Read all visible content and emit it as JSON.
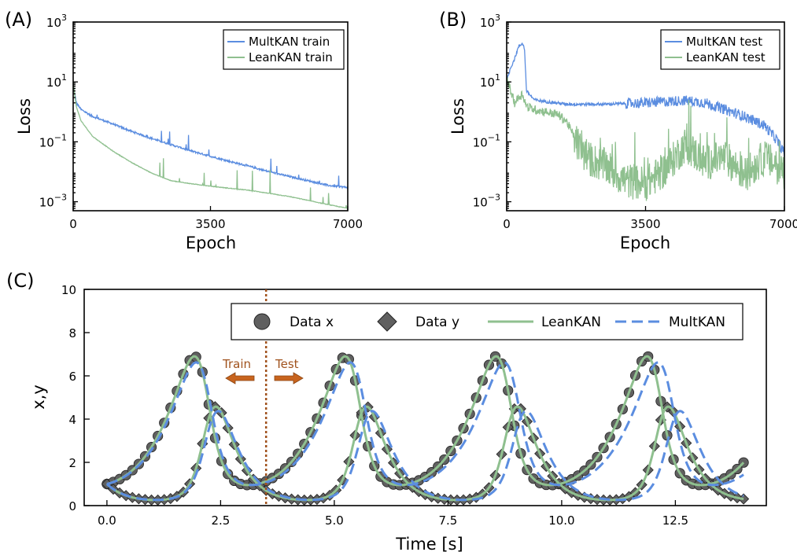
{
  "panels": {
    "a": {
      "label": "(A)"
    },
    "b": {
      "label": "(B)"
    },
    "c": {
      "label": "(C)"
    }
  },
  "colors": {
    "multkan": "#5b8de0",
    "leankan": "#8fc08f",
    "data_marker": "#606060",
    "split_line": "#a0521d",
    "arrow": "#c8641e"
  },
  "chart_data": [
    {
      "id": "A",
      "type": "line",
      "xlabel": "Epoch",
      "ylabel": "Loss",
      "xlim": [
        0,
        7000
      ],
      "ylim": [
        0.0005,
        1000
      ],
      "yscale": "log",
      "xticks": [
        0,
        3500,
        7000
      ],
      "xtick_labels": [
        "0",
        "3500",
        "7000"
      ],
      "yticks": [
        1000,
        10,
        0.1,
        0.001
      ],
      "ytick_labels": [
        {
          "base": "10",
          "exp": "3"
        },
        {
          "base": "10",
          "exp": "1"
        },
        {
          "base": "10",
          "exp": "−1"
        },
        {
          "base": "10",
          "exp": "−3"
        }
      ],
      "legend": "top-right",
      "series": [
        {
          "name": "MultKAN train",
          "color": "#5b8de0",
          "x": [
            0,
            80,
            200,
            500,
            1000,
            1500,
            2000,
            2500,
            3000,
            3500,
            4000,
            4500,
            5000,
            5500,
            6000,
            6500,
            7000
          ],
          "y": [
            8,
            2.0,
            1.2,
            0.7,
            0.4,
            0.22,
            0.13,
            0.08,
            0.05,
            0.033,
            0.022,
            0.015,
            0.01,
            0.007,
            0.005,
            0.0035,
            0.003
          ]
        },
        {
          "name": "LeanKAN train",
          "color": "#8fc08f",
          "x": [
            0,
            80,
            200,
            500,
            1000,
            1500,
            2000,
            2500,
            3000,
            3500,
            4000,
            4500,
            5000,
            5500,
            6000,
            6500,
            7000
          ],
          "y": [
            9,
            1.5,
            0.5,
            0.15,
            0.05,
            0.02,
            0.009,
            0.005,
            0.004,
            0.0033,
            0.0028,
            0.0024,
            0.0019,
            0.0015,
            0.0011,
            0.0008,
            0.0006
          ]
        }
      ]
    },
    {
      "id": "B",
      "type": "line",
      "xlabel": "Epoch",
      "ylabel": "Loss",
      "xlim": [
        0,
        7000
      ],
      "ylim": [
        0.0005,
        1000
      ],
      "yscale": "log",
      "xticks": [
        0,
        3500,
        7000
      ],
      "xtick_labels": [
        "0",
        "3500",
        "7000"
      ],
      "yticks": [
        1000,
        10,
        0.1,
        0.001
      ],
      "ytick_labels": [
        {
          "base": "10",
          "exp": "3"
        },
        {
          "base": "10",
          "exp": "1"
        },
        {
          "base": "10",
          "exp": "−1"
        },
        {
          "base": "10",
          "exp": "−3"
        }
      ],
      "legend": "top-right",
      "series": [
        {
          "name": "MultKAN test",
          "color": "#5b8de0",
          "x": [
            0,
            100,
            200,
            300,
            400,
            450,
            500,
            700,
            1000,
            1500,
            2000,
            2500,
            3000,
            3500,
            4000,
            4500,
            5000,
            5500,
            6000,
            6500,
            6800,
            7000
          ],
          "y": [
            10,
            30,
            60,
            150,
            200,
            120,
            5,
            2.5,
            2.2,
            1.8,
            1.8,
            1.8,
            1.9,
            2.0,
            2.2,
            2.4,
            2.0,
            1.2,
            0.7,
            0.35,
            0.12,
            0.04
          ]
        },
        {
          "name": "LeanKAN test",
          "color": "#8fc08f",
          "x": [
            0,
            100,
            200,
            300,
            400,
            500,
            700,
            1000,
            1300,
            1500,
            1800,
            2000,
            2500,
            3000,
            3500,
            4000,
            4500,
            5000,
            5500,
            6000,
            6500,
            7000
          ],
          "y": [
            15,
            5,
            2,
            3,
            4,
            1.5,
            1.2,
            1.0,
            0.8,
            0.5,
            0.08,
            0.03,
            0.015,
            0.005,
            0.004,
            0.012,
            0.08,
            0.02,
            0.03,
            0.008,
            0.03,
            0.01
          ]
        }
      ]
    },
    {
      "id": "C",
      "type": "line",
      "xlabel": "Time [s]",
      "ylabel": "x,y",
      "xlim": [
        -0.5,
        14.5
      ],
      "ylim": [
        0,
        10
      ],
      "xticks": [
        0,
        2.5,
        5,
        7.5,
        10,
        12.5
      ],
      "xtick_labels": [
        "0.0",
        "2.5",
        "5.0",
        "7.5",
        "10.0",
        "12.5"
      ],
      "yticks": [
        0,
        2,
        4,
        6,
        8,
        10
      ],
      "ytick_labels": [
        "0",
        "2",
        "4",
        "6",
        "8",
        "10"
      ],
      "legend": "top-center",
      "split_time": 3.5,
      "annotations": {
        "train": "Train",
        "test": "Test"
      },
      "series": [
        {
          "name": "Data x",
          "marker": "circle",
          "period": 3.35,
          "x0": 1.0,
          "xmax": 6.9,
          "peak_t": 1.9,
          "t_end": 14.0
        },
        {
          "name": "Data y",
          "marker": "diamond",
          "period": 3.35,
          "y0": 1.0,
          "ymax": 4.6,
          "peak_t": 2.45,
          "t_end": 14.0
        },
        {
          "name": "LeanKAN",
          "style": "solid",
          "color": "#8fc08f",
          "period": 3.35
        },
        {
          "name": "MultKAN",
          "style": "dashed",
          "color": "#5b8de0",
          "period": 3.43
        }
      ]
    }
  ]
}
